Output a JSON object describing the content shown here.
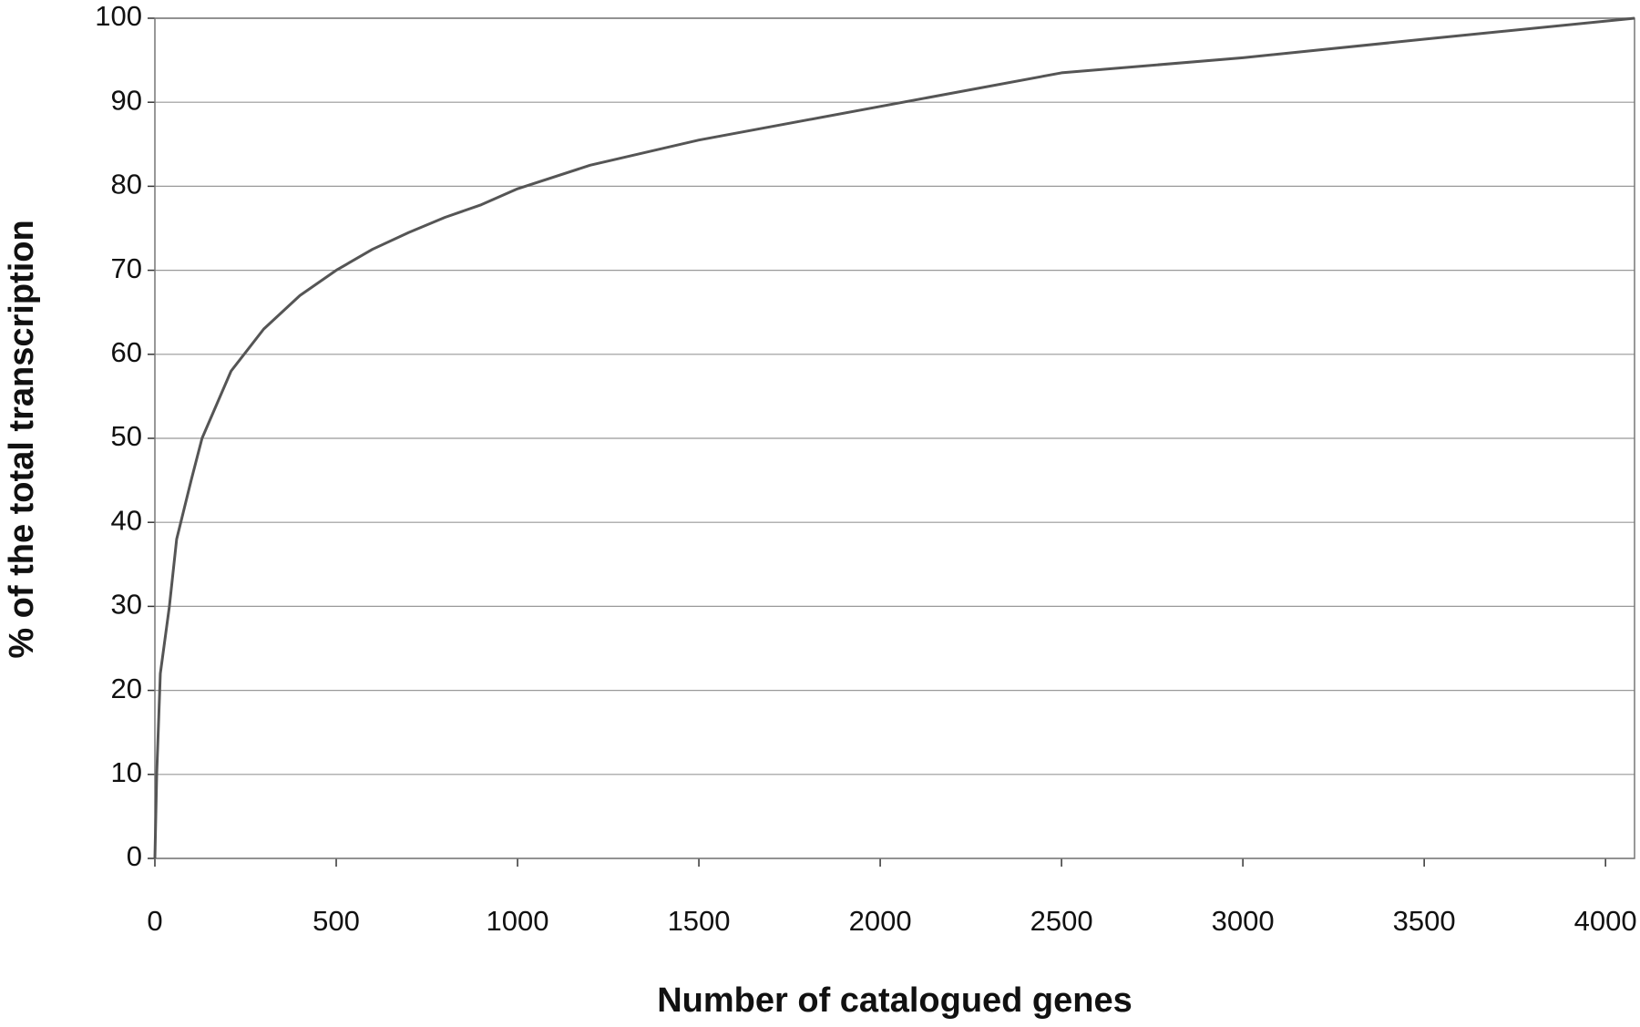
{
  "chart_data": {
    "type": "line",
    "xlabel": "Number of catalogued genes",
    "ylabel": "% of the total transcription",
    "x": [
      0,
      5,
      15,
      40,
      60,
      100,
      130,
      170,
      210,
      300,
      400,
      500,
      600,
      700,
      800,
      900,
      1000,
      1200,
      1500,
      2000,
      2500,
      3000,
      3500,
      4080
    ],
    "series": [
      {
        "color": "#555555",
        "values": [
          0,
          10,
          22,
          30,
          38,
          45,
          50,
          54,
          58,
          63,
          67,
          70,
          72.5,
          74.5,
          76.3,
          77.8,
          79.7,
          82.5,
          85.5,
          89.5,
          93.5,
          95.3,
          97.5,
          100
        ]
      }
    ],
    "xlim": [
      0,
      4080
    ],
    "xticks": [
      0,
      500,
      1000,
      1500,
      2000,
      2500,
      3000,
      3500,
      4000
    ],
    "ylim": [
      0,
      100
    ],
    "yticks": [
      0,
      10,
      20,
      30,
      40,
      50,
      60,
      70,
      80,
      90,
      100
    ],
    "grid": true
  }
}
